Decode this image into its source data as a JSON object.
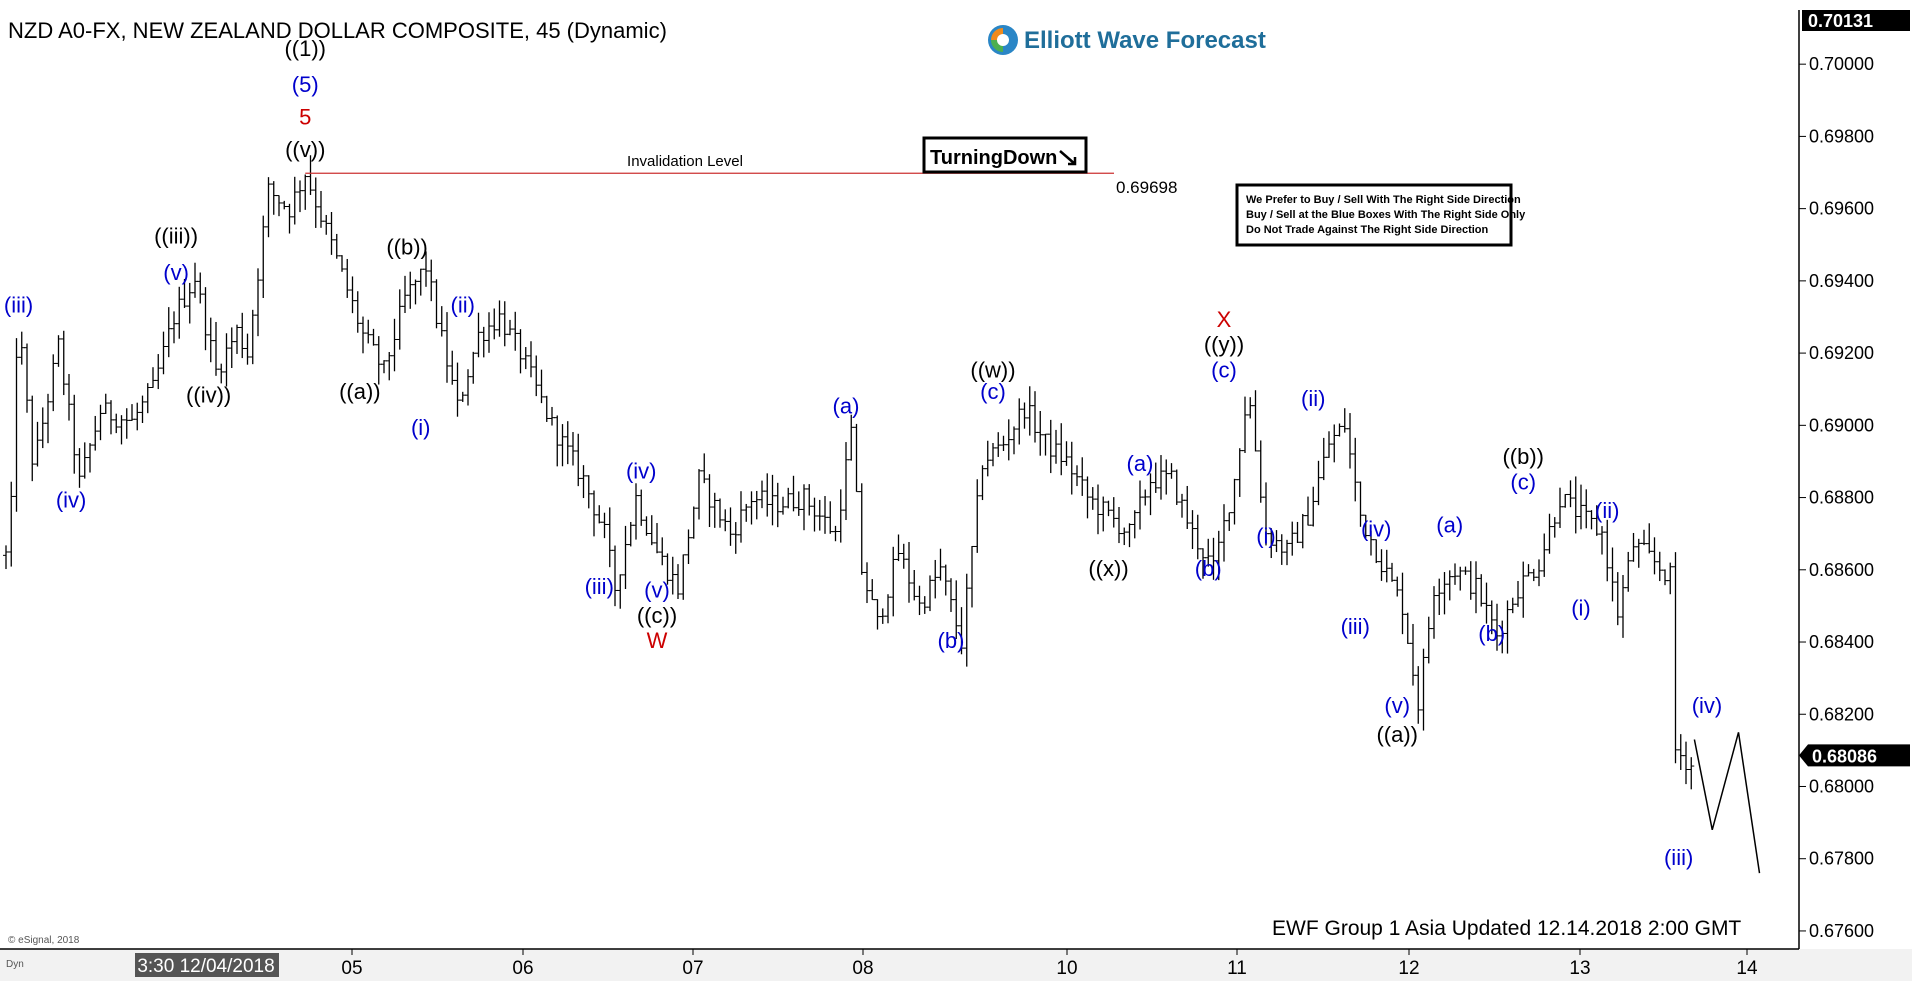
{
  "chart_data": {
    "type": "ohlc",
    "title": "NZD A0-FX, NEW ZEALAND DOLLAR COMPOSITE, 45 (Dynamic)",
    "brand": "Elliott Wave Forecast",
    "ylim": [
      0.6755,
      0.7015
    ],
    "y_ticks": [
      "0.67600",
      "0.67800",
      "0.68000",
      "0.68200",
      "0.68400",
      "0.68600",
      "0.68800",
      "0.69000",
      "0.69200",
      "0.69400",
      "0.69600",
      "0.69800",
      "0.70000"
    ],
    "last_price_top": "0.70131",
    "last_price": "0.68086",
    "x_labels": [
      {
        "label": "3:30 12/04/2018",
        "highlight": true
      },
      {
        "label": "05"
      },
      {
        "label": "06"
      },
      {
        "label": "07"
      },
      {
        "label": "08"
      },
      {
        "label": "10"
      },
      {
        "label": "11"
      },
      {
        "label": "12"
      },
      {
        "label": "13"
      },
      {
        "label": "14"
      }
    ],
    "invalidation": {
      "label": "Invalidation Level",
      "value": 0.69698,
      "value_label": "0.69698"
    },
    "turning_down": "TurningDown",
    "notes": [
      "We Prefer to Buy / Sell With The Right Side Direction",
      "Buy / Sell at the Blue Boxes With The Right Side Only",
      "Do Not Trade Against The Right Side Direction"
    ],
    "copyright": "© eSignal, 2018",
    "dyn": "Dyn",
    "footer": "EWF Group 1 Asia Updated 12.14.2018 2:00 GMT",
    "pivots": [
      [
        0,
        0.6864
      ],
      [
        0.6,
        0.688
      ],
      [
        1.1,
        0.6931
      ],
      [
        2.6,
        0.6888
      ],
      [
        5,
        0.6922
      ],
      [
        7,
        0.6884
      ],
      [
        9,
        0.6904
      ],
      [
        12,
        0.6901
      ],
      [
        14,
        0.691
      ],
      [
        16,
        0.693
      ],
      [
        18,
        0.6941
      ],
      [
        20,
        0.6915
      ],
      [
        22,
        0.6926
      ],
      [
        23,
        0.692
      ],
      [
        25,
        0.6965
      ],
      [
        27,
        0.696
      ],
      [
        28.5,
        0.697
      ],
      [
        31,
        0.695
      ],
      [
        34,
        0.6925
      ],
      [
        36,
        0.6915
      ],
      [
        38,
        0.6935
      ],
      [
        40,
        0.6944
      ],
      [
        41,
        0.693
      ],
      [
        43,
        0.6905
      ],
      [
        45,
        0.6925
      ],
      [
        47,
        0.693
      ],
      [
        49,
        0.692
      ],
      [
        52,
        0.69
      ],
      [
        55,
        0.6885
      ],
      [
        57,
        0.687
      ],
      [
        58,
        0.6855
      ],
      [
        60,
        0.688
      ],
      [
        62,
        0.6865
      ],
      [
        64,
        0.6855
      ],
      [
        66,
        0.6885
      ],
      [
        67,
        0.688
      ],
      [
        69,
        0.687
      ],
      [
        71,
        0.688
      ],
      [
        73,
        0.6878
      ],
      [
        76,
        0.688
      ],
      [
        79,
        0.687
      ],
      [
        80.5,
        0.6898
      ],
      [
        81.5,
        0.686
      ],
      [
        83,
        0.6845
      ],
      [
        85,
        0.6865
      ],
      [
        87,
        0.685
      ],
      [
        89,
        0.686
      ],
      [
        91,
        0.684
      ],
      [
        93,
        0.689
      ],
      [
        95,
        0.6895
      ],
      [
        97,
        0.6905
      ],
      [
        99,
        0.6895
      ],
      [
        101,
        0.689
      ],
      [
        103,
        0.688
      ],
      [
        105,
        0.6875
      ],
      [
        107,
        0.687
      ],
      [
        109,
        0.6885
      ],
      [
        111,
        0.6885
      ],
      [
        113,
        0.687
      ],
      [
        115,
        0.686
      ],
      [
        117,
        0.6885
      ],
      [
        118.3,
        0.691
      ],
      [
        120,
        0.687
      ],
      [
        122,
        0.6865
      ],
      [
        124,
        0.6875
      ],
      [
        126,
        0.6895
      ],
      [
        127.5,
        0.69
      ],
      [
        129,
        0.6875
      ],
      [
        131,
        0.6862
      ],
      [
        133,
        0.685
      ],
      [
        134.5,
        0.6823
      ],
      [
        136,
        0.6855
      ],
      [
        138,
        0.686
      ],
      [
        140,
        0.6855
      ],
      [
        142,
        0.6842
      ],
      [
        144,
        0.6855
      ],
      [
        146,
        0.6862
      ],
      [
        148,
        0.688
      ],
      [
        150,
        0.6875
      ],
      [
        152,
        0.687
      ],
      [
        153.5,
        0.6848
      ],
      [
        155,
        0.6867
      ],
      [
        157,
        0.6862
      ],
      [
        158.5,
        0.6858
      ],
      [
        159,
        0.681
      ],
      [
        160.5,
        0.6806
      ]
    ],
    "projection": [
      [
        160.8,
        0.6813
      ],
      [
        162.5,
        0.6788
      ],
      [
        165,
        0.6815
      ],
      [
        167,
        0.6776
      ]
    ],
    "labels": [
      {
        "text": "((1))",
        "x": 28.5,
        "y": 0.70045,
        "color": "#000000"
      },
      {
        "text": "(5)",
        "x": 28.5,
        "y": 0.69945,
        "color": "#0000cc"
      },
      {
        "text": "5",
        "x": 28.5,
        "y": 0.69855,
        "color": "#cc0000"
      },
      {
        "text": "((v))",
        "x": 28.5,
        "y": 0.69765,
        "color": "#000000"
      },
      {
        "text": "(iii)",
        "x": 1.2,
        "y": 0.69335,
        "color": "#0000cc"
      },
      {
        "text": "(iv)",
        "x": 6.2,
        "y": 0.68795,
        "color": "#0000cc"
      },
      {
        "text": "((iii))",
        "x": 16.2,
        "y": 0.69525,
        "color": "#000000"
      },
      {
        "text": "(v)",
        "x": 16.2,
        "y": 0.69425,
        "color": "#0000cc"
      },
      {
        "text": "((iv))",
        "x": 19.3,
        "y": 0.69085,
        "color": "#000000"
      },
      {
        "text": "((b))",
        "x": 38.2,
        "y": 0.69495,
        "color": "#000000"
      },
      {
        "text": "((a))",
        "x": 33.7,
        "y": 0.69095,
        "color": "#000000"
      },
      {
        "text": "(ii)",
        "x": 43.5,
        "y": 0.69335,
        "color": "#0000cc"
      },
      {
        "text": "(i)",
        "x": 39.5,
        "y": 0.68995,
        "color": "#0000cc"
      },
      {
        "text": "(iii)",
        "x": 56.5,
        "y": 0.68555,
        "color": "#0000cc"
      },
      {
        "text": "(iv)",
        "x": 60.5,
        "y": 0.68875,
        "color": "#0000cc"
      },
      {
        "text": "(v)",
        "x": 62,
        "y": 0.68545,
        "color": "#0000cc"
      },
      {
        "text": "((c))",
        "x": 62,
        "y": 0.68475,
        "color": "#000000"
      },
      {
        "text": "W",
        "x": 62,
        "y": 0.68405,
        "color": "#cc0000"
      },
      {
        "text": "(a)",
        "x": 80,
        "y": 0.69055,
        "color": "#0000cc"
      },
      {
        "text": "(b)",
        "x": 90,
        "y": 0.68405,
        "color": "#0000cc"
      },
      {
        "text": "((w))",
        "x": 94,
        "y": 0.69155,
        "color": "#000000"
      },
      {
        "text": "(c)",
        "x": 94,
        "y": 0.69095,
        "color": "#0000cc"
      },
      {
        "text": "((x))",
        "x": 105,
        "y": 0.68605,
        "color": "#000000"
      },
      {
        "text": "(a)",
        "x": 108,
        "y": 0.68895,
        "color": "#0000cc"
      },
      {
        "text": "(b)",
        "x": 114.5,
        "y": 0.68605,
        "color": "#0000cc"
      },
      {
        "text": "X",
        "x": 116,
        "y": 0.69295,
        "color": "#cc0000"
      },
      {
        "text": "((y))",
        "x": 116,
        "y": 0.69225,
        "color": "#000000"
      },
      {
        "text": "(c)",
        "x": 116,
        "y": 0.69155,
        "color": "#0000cc"
      },
      {
        "text": "(ii)",
        "x": 124.5,
        "y": 0.69075,
        "color": "#0000cc"
      },
      {
        "text": "(i)",
        "x": 120,
        "y": 0.68695,
        "color": "#0000cc"
      },
      {
        "text": "(iv)",
        "x": 130.5,
        "y": 0.68715,
        "color": "#0000cc"
      },
      {
        "text": "(iii)",
        "x": 128.5,
        "y": 0.68445,
        "color": "#0000cc"
      },
      {
        "text": "(v)",
        "x": 132.5,
        "y": 0.68225,
        "color": "#0000cc"
      },
      {
        "text": "((a))",
        "x": 132.5,
        "y": 0.68145,
        "color": "#000000"
      },
      {
        "text": "(a)",
        "x": 137.5,
        "y": 0.68725,
        "color": "#0000cc"
      },
      {
        "text": "(b)",
        "x": 141.5,
        "y": 0.68425,
        "color": "#0000cc"
      },
      {
        "text": "((b))",
        "x": 144.5,
        "y": 0.68915,
        "color": "#000000"
      },
      {
        "text": "(c)",
        "x": 144.5,
        "y": 0.68845,
        "color": "#0000cc"
      },
      {
        "text": "(ii)",
        "x": 152.5,
        "y": 0.68765,
        "color": "#0000cc"
      },
      {
        "text": "(i)",
        "x": 150,
        "y": 0.68495,
        "color": "#0000cc"
      },
      {
        "text": "(iv)",
        "x": 162,
        "y": 0.68225,
        "color": "#0000cc"
      },
      {
        "text": "(iii)",
        "x": 159.3,
        "y": 0.67805,
        "color": "#0000cc"
      }
    ]
  }
}
